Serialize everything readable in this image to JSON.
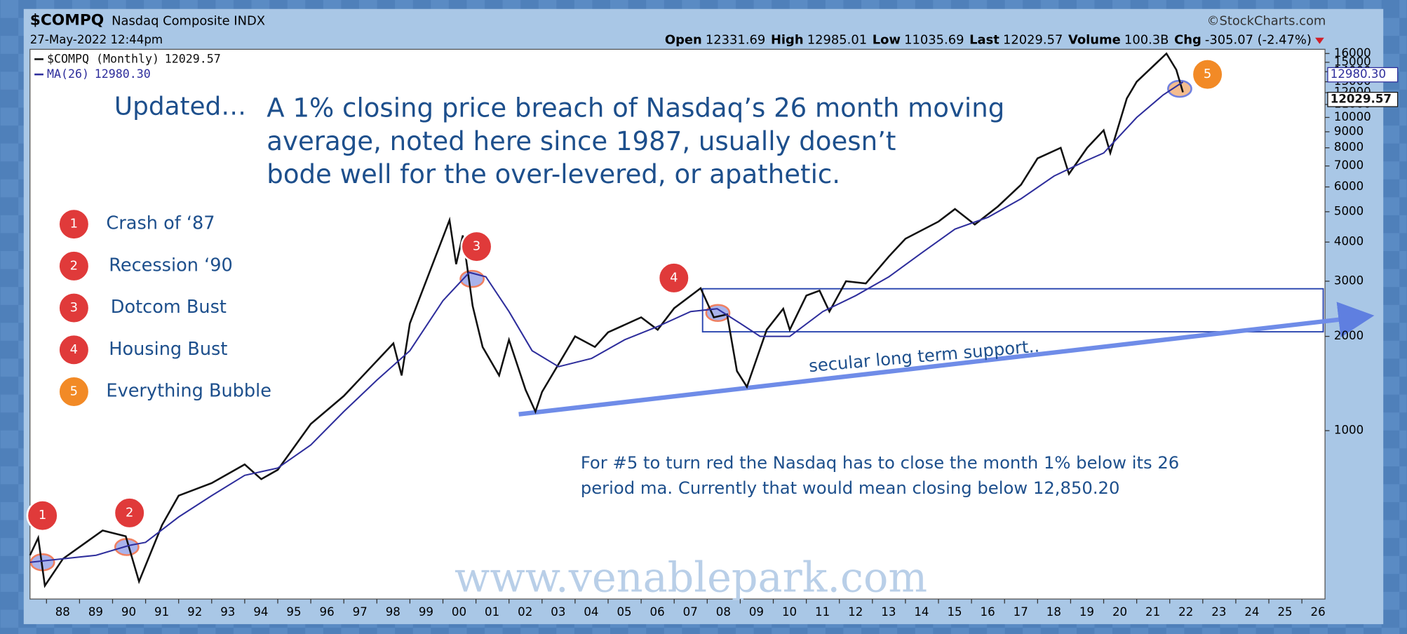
{
  "chart_data": {
    "type": "line",
    "header": {
      "symbol": "$COMPQ",
      "name": "Nasdaq Composite INDX",
      "date": "27-May-2022 12:44pm",
      "source": "©StockCharts.com",
      "quote": [
        {
          "label": "Open",
          "value": "12331.69"
        },
        {
          "label": "High",
          "value": "12985.01"
        },
        {
          "label": "Low",
          "value": "11035.69"
        },
        {
          "label": "Last",
          "value": "12029.57"
        },
        {
          "label": "Volume",
          "value": "100.3B"
        },
        {
          "label": "Chg",
          "value": "-305.07 (-2.47%)"
        }
      ]
    },
    "headline_prefix": "Updated…",
    "headline": [
      "A 1% closing price breach of Nasdaq’s 26 month moving",
      "average, noted here since 1987, usually doesn’t",
      "bode well for the over-levered, or apathetic."
    ],
    "callouts": [
      {
        "number": "1",
        "label": "Crash of ‘87"
      },
      {
        "number": "2",
        "label": "Recession ‘90"
      },
      {
        "number": "3",
        "label": "Dotcom Bust"
      },
      {
        "number": "4",
        "label": "Housing Bust"
      },
      {
        "number": "5",
        "label": "Everything Bubble"
      }
    ],
    "support_label": "secular long term support..",
    "note": [
      "For #5 to turn red the Nasdaq has to close the month 1% below its 26",
      "period ma. Currently that would mean closing below 12,850.20"
    ],
    "watermark": "www.venablepark.com",
    "log_scale": true,
    "xlim": [
      1987.5,
      2026.7
    ],
    "ylim": [
      290,
      16500
    ],
    "xticks": [
      {
        "value": 1988,
        "label": "88"
      },
      {
        "value": 1989,
        "label": "89"
      },
      {
        "value": 1990,
        "label": "90"
      },
      {
        "value": 1991,
        "label": "91"
      },
      {
        "value": 1992,
        "label": "92"
      },
      {
        "value": 1993,
        "label": "93"
      },
      {
        "value": 1994,
        "label": "94"
      },
      {
        "value": 1995,
        "label": "95"
      },
      {
        "value": 1996,
        "label": "96"
      },
      {
        "value": 1997,
        "label": "97"
      },
      {
        "value": 1998,
        "label": "98"
      },
      {
        "value": 1999,
        "label": "99"
      },
      {
        "value": 2000,
        "label": "00"
      },
      {
        "value": 2001,
        "label": "01"
      },
      {
        "value": 2002,
        "label": "02"
      },
      {
        "value": 2003,
        "label": "03"
      },
      {
        "value": 2004,
        "label": "04"
      },
      {
        "value": 2005,
        "label": "05"
      },
      {
        "value": 2006,
        "label": "06"
      },
      {
        "value": 2007,
        "label": "07"
      },
      {
        "value": 2008,
        "label": "08"
      },
      {
        "value": 2009,
        "label": "09"
      },
      {
        "value": 2010,
        "label": "10"
      },
      {
        "value": 2011,
        "label": "11"
      },
      {
        "value": 2012,
        "label": "12"
      },
      {
        "value": 2013,
        "label": "13"
      },
      {
        "value": 2014,
        "label": "14"
      },
      {
        "value": 2015,
        "label": "15"
      },
      {
        "value": 2016,
        "label": "16"
      },
      {
        "value": 2017,
        "label": "17"
      },
      {
        "value": 2018,
        "label": "18"
      },
      {
        "value": 2019,
        "label": "19"
      },
      {
        "value": 2020,
        "label": "20"
      },
      {
        "value": 2021,
        "label": "21"
      },
      {
        "value": 2022,
        "label": "22"
      },
      {
        "value": 2023,
        "label": "23"
      },
      {
        "value": 2024,
        "label": "24"
      },
      {
        "value": 2025,
        "label": "25"
      },
      {
        "value": 2026,
        "label": "26"
      }
    ],
    "yticks": [
      1000,
      2000,
      3000,
      4000,
      5000,
      6000,
      7000,
      8000,
      9000,
      10000,
      11000,
      12000,
      13000,
      14000,
      15000,
      16000
    ],
    "series": [
      {
        "name": "$COMPQ (Monthly)",
        "last_label": "12029.57",
        "color": "#111111",
        "x": [
          1987.5,
          1987.75,
          1987.95,
          1988.5,
          1989.7,
          1990.4,
          1990.8,
          1991.5,
          1992.0,
          1993.0,
          1994.0,
          1994.5,
          1995.0,
          1996.0,
          1997.0,
          1998.5,
          1998.75,
          1999.0,
          2000.2,
          2000.4,
          2000.6,
          2000.9,
          2001.2,
          2001.7,
          2002.0,
          2002.5,
          2002.8,
          2003.0,
          2004.0,
          2004.6,
          2005.0,
          2006.0,
          2006.5,
          2007.0,
          2007.8,
          2008.2,
          2008.6,
          2008.9,
          2009.2,
          2009.8,
          2010.3,
          2010.5,
          2011.0,
          2011.4,
          2011.7,
          2012.2,
          2012.8,
          2013.5,
          2014.0,
          2015.0,
          2015.5,
          2016.1,
          2016.8,
          2017.5,
          2018.0,
          2018.7,
          2018.95,
          2019.5,
          2020.0,
          2020.2,
          2020.7,
          2021.0,
          2021.9,
          2022.2,
          2022.4
        ],
        "values": [
          400,
          455,
          320,
          390,
          480,
          460,
          330,
          500,
          620,
          680,
          780,
          700,
          750,
          1050,
          1290,
          1900,
          1500,
          2200,
          4700,
          3400,
          4200,
          2500,
          1850,
          1500,
          1950,
          1350,
          1150,
          1330,
          2000,
          1850,
          2060,
          2300,
          2100,
          2460,
          2850,
          2300,
          2350,
          1550,
          1380,
          2100,
          2450,
          2100,
          2700,
          2800,
          2400,
          3000,
          2950,
          3600,
          4100,
          4650,
          5100,
          4550,
          5200,
          6100,
          7400,
          8000,
          6600,
          8000,
          9100,
          7700,
          11500,
          13000,
          16000,
          14200,
          12029.57
        ]
      },
      {
        "name": "MA(26)",
        "last_label": "12980.30",
        "color": "#2e2e9c",
        "x": [
          1987.5,
          1988.5,
          1989.5,
          1990.5,
          1991.0,
          1992.0,
          1993.0,
          1994.0,
          1995.0,
          1996.0,
          1997.0,
          1998.0,
          1999.0,
          2000.0,
          2000.8,
          2001.3,
          2002.0,
          2002.7,
          2003.5,
          2004.5,
          2005.5,
          2006.5,
          2007.5,
          2008.3,
          2009.0,
          2009.6,
          2010.5,
          2011.5,
          2012.5,
          2013.5,
          2014.5,
          2015.5,
          2016.5,
          2017.5,
          2018.5,
          2019.5,
          2020.0,
          2021.0,
          2021.8,
          2022.4
        ],
        "values": [
          380,
          390,
          400,
          430,
          440,
          530,
          620,
          720,
          760,
          900,
          1150,
          1450,
          1800,
          2600,
          3200,
          3100,
          2400,
          1800,
          1600,
          1700,
          1950,
          2150,
          2400,
          2450,
          2200,
          2000,
          2000,
          2400,
          2700,
          3100,
          3700,
          4400,
          4800,
          5500,
          6500,
          7300,
          7700,
          10000,
          11800,
          12980.3
        ]
      }
    ]
  }
}
